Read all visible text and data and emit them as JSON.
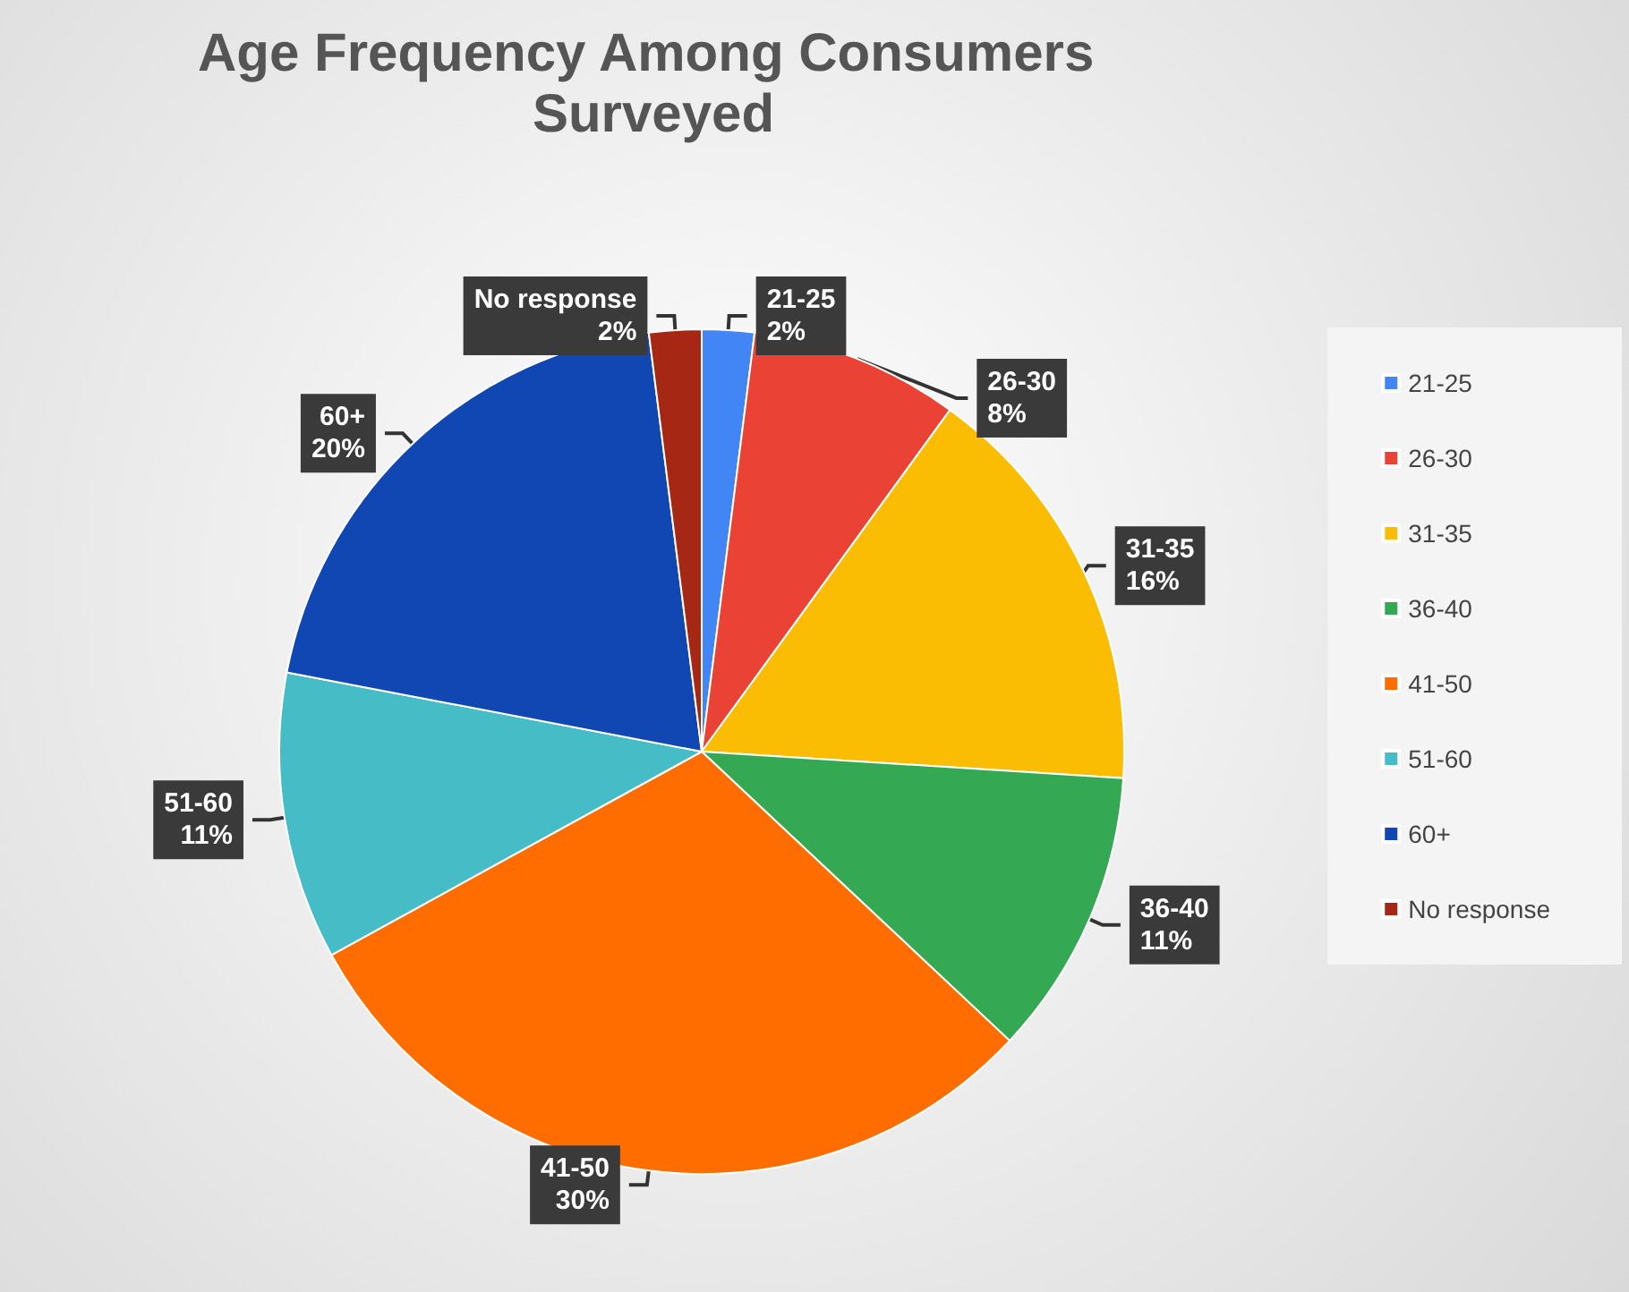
{
  "chart_data": {
    "type": "pie",
    "title": "Age Frequency Among Consumers Surveyed",
    "categories": [
      "21-25",
      "26-30",
      "31-35",
      "36-40",
      "41-50",
      "51-60",
      "60+",
      "No response"
    ],
    "values": [
      2,
      8,
      16,
      11,
      30,
      11,
      20,
      2
    ],
    "value_labels": [
      "2%",
      "8%",
      "16%",
      "11%",
      "30%",
      "11%",
      "20%",
      "2%"
    ],
    "colors": [
      "#4285f4",
      "#ea4335",
      "#fbbc04",
      "#34a853",
      "#ff6d01",
      "#46bdc6",
      "#1047b3",
      "#a52714"
    ],
    "legend": "right"
  }
}
